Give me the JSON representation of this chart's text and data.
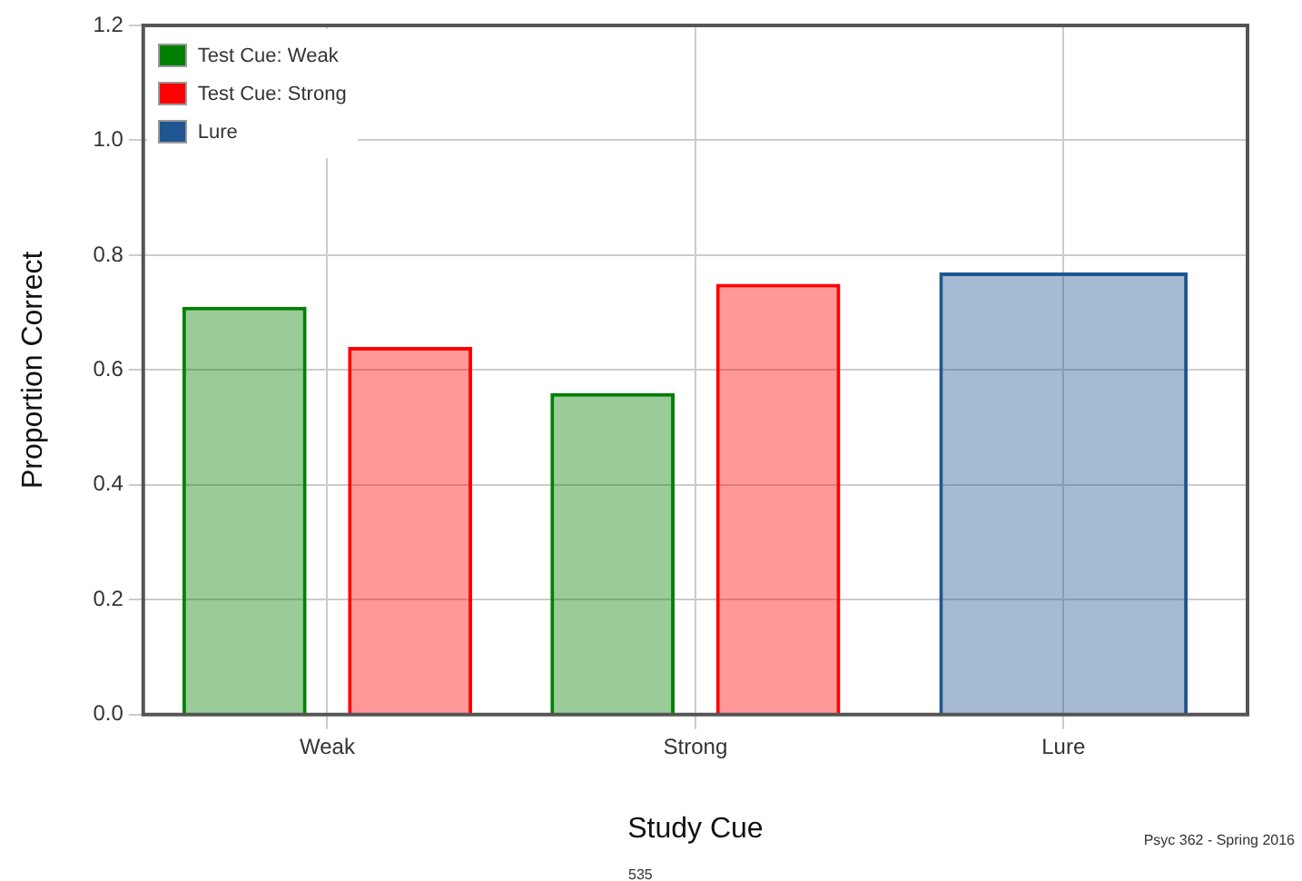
{
  "chart_data": {
    "type": "bar",
    "xlabel": "Study Cue",
    "ylabel": "Proportion Correct",
    "categories": [
      "Weak",
      "Strong",
      "Lure"
    ],
    "series": [
      {
        "name": "Test Cue: Weak",
        "color": "#008000",
        "values": [
          0.71,
          0.56,
          null
        ]
      },
      {
        "name": "Test Cue: Strong",
        "color": "#ff0000",
        "values": [
          0.64,
          0.75,
          null
        ]
      },
      {
        "name": "Lure",
        "color": "#1f5591",
        "values": [
          null,
          null,
          0.77
        ]
      }
    ],
    "ylim": [
      0,
      1.2
    ],
    "yticks": [
      {
        "value": 0,
        "label": "0.0"
      },
      {
        "value": 0.2,
        "label": "0.2"
      },
      {
        "value": 0.4,
        "label": "0.4"
      },
      {
        "value": 0.6,
        "label": "0.6"
      },
      {
        "value": 0.8,
        "label": "0.8"
      },
      {
        "value": 1,
        "label": "1.0"
      },
      {
        "value": 1.2,
        "label": "1.2"
      }
    ],
    "grid": true,
    "legend": "top left",
    "annotations": [
      "Psyc 362 - Spring 2016",
      "535"
    ]
  }
}
